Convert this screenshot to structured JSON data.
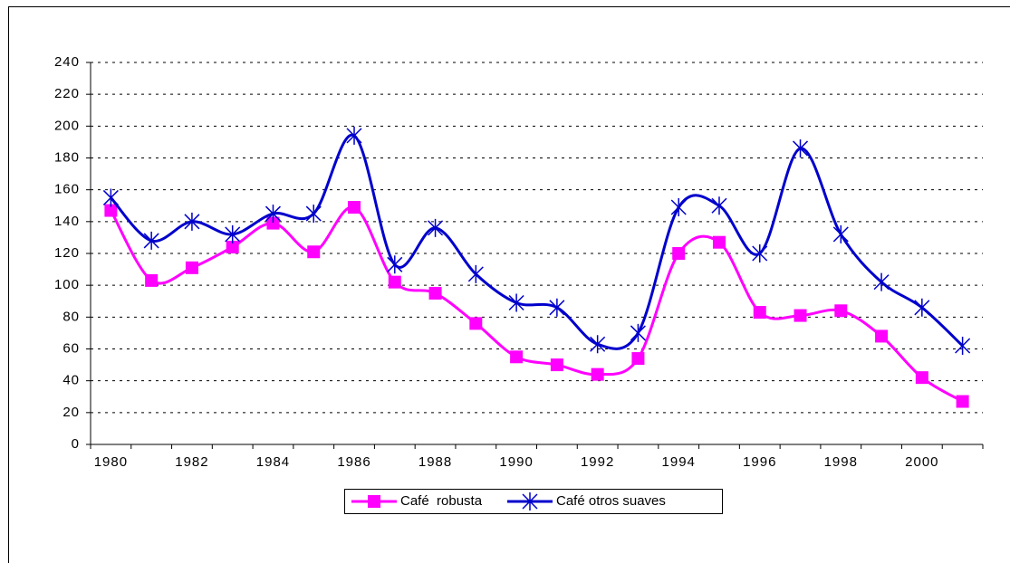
{
  "chart_data": {
    "type": "line",
    "categories": [
      "1980",
      null,
      "1982",
      null,
      "1984",
      null,
      "1986",
      null,
      "1988",
      null,
      "1990",
      null,
      "1992",
      null,
      "1994",
      null,
      "1996",
      null,
      "1998",
      null,
      "2000",
      null
    ],
    "series": [
      {
        "name": "Café  robusta",
        "color": "#ff00ff",
        "marker": "square",
        "values": [
          147,
          103,
          111,
          124,
          139,
          121,
          149,
          102,
          95,
          76,
          55,
          50,
          44,
          54,
          120,
          127,
          83,
          81,
          84,
          68,
          42,
          27
        ]
      },
      {
        "name": "Café otros suaves",
        "color": "#0000cc",
        "marker": "asterisk",
        "values": [
          155,
          128,
          140,
          132,
          145,
          145,
          194,
          113,
          136,
          107,
          89,
          86,
          63,
          70,
          149,
          150,
          120,
          186,
          132,
          102,
          86,
          62
        ]
      }
    ],
    "ylim": [
      0,
      240
    ],
    "yticks": [
      0,
      20,
      40,
      60,
      80,
      100,
      120,
      140,
      160,
      180,
      200,
      220,
      240
    ],
    "grid": true,
    "smooth": true,
    "legend": "bottom"
  }
}
